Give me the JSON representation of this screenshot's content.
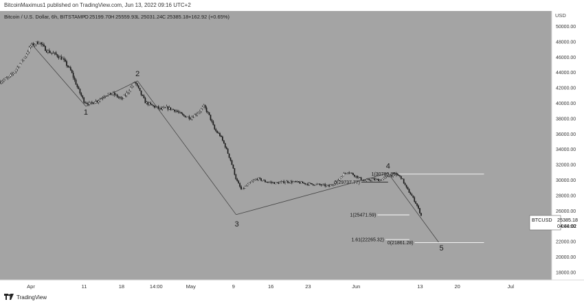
{
  "header": {
    "published": "BitcoinMaximus1 published on TradingView.com, Jun 13, 2022 09:16 UTC+2"
  },
  "symbol_bar": {
    "name": "Bitcoin / U.S. Dollar, 6h, BITSTAMP",
    "o_label": "O",
    "o": "25199.70",
    "h_label": "H",
    "h": "25559.93",
    "l_label": "L",
    "l": "25031.24",
    "c_label": "C",
    "c": "25385.18",
    "change": "+162.92 (+0.65%)"
  },
  "price_tag": {
    "symbol": "BTCUSD",
    "price": "25385.18",
    "countdown": "04:44:02"
  },
  "footer": {
    "brand": "TradingView"
  },
  "colors": {
    "background": "#a4a4a4",
    "candle": "#1a1a1a",
    "wave_line": "#444444",
    "fib_line": "#ffffff",
    "price_tag": "#ffffff"
  },
  "chart_data": {
    "type": "candlestick",
    "currency": "USD",
    "ylim": [
      17000,
      52000
    ],
    "y_ticks": [
      50000,
      48000,
      46000,
      44000,
      42000,
      40000,
      38000,
      36000,
      34000,
      32000,
      30000,
      28000,
      26000,
      24000,
      22000,
      20000,
      18000
    ],
    "y_tick_labels": [
      "50000.00",
      "48000.00",
      "46000.00",
      "44000.00",
      "42000.00",
      "40000.00",
      "38000.00",
      "36000.00",
      "34000.00",
      "32000.00",
      "30000.00",
      "28000.00",
      "26000.00",
      "24000.00",
      "22000.00",
      "20000.00",
      "18000.00"
    ],
    "x_range_days": [
      -5.8,
      97.7
    ],
    "x_ticks": [
      {
        "day": 0,
        "label": "Apr"
      },
      {
        "day": 10,
        "label": "11"
      },
      {
        "day": 17,
        "label": "18"
      },
      {
        "day": 23.5,
        "label": "14:00"
      },
      {
        "day": 30,
        "label": "May"
      },
      {
        "day": 38,
        "label": "9"
      },
      {
        "day": 45,
        "label": "16"
      },
      {
        "day": 52,
        "label": "23"
      },
      {
        "day": 61,
        "label": "Jun"
      },
      {
        "day": 73,
        "label": "13"
      },
      {
        "day": 80,
        "label": "20"
      },
      {
        "day": 90,
        "label": "Jul"
      }
    ],
    "price_path": [
      [
        -5.8,
        42800
      ],
      [
        -4,
        43400
      ],
      [
        -2.5,
        44700
      ],
      [
        -1,
        46200
      ],
      [
        0,
        47500
      ],
      [
        1.5,
        48000
      ],
      [
        3,
        46800
      ],
      [
        4.5,
        46400
      ],
      [
        6,
        45700
      ],
      [
        7.5,
        44200
      ],
      [
        9,
        41600
      ],
      [
        10,
        40200
      ],
      [
        11,
        39900
      ],
      [
        12.5,
        40300
      ],
      [
        14,
        41100
      ],
      [
        15.5,
        41200
      ],
      [
        17,
        40500
      ],
      [
        18,
        41300
      ],
      [
        19.5,
        42800
      ],
      [
        20.5,
        41400
      ],
      [
        21.5,
        40100
      ],
      [
        23,
        39600
      ],
      [
        24.5,
        39200
      ],
      [
        25.5,
        39400
      ],
      [
        27,
        39100
      ],
      [
        28.5,
        38400
      ],
      [
        30,
        38100
      ],
      [
        31.5,
        38900
      ],
      [
        32.5,
        39600
      ],
      [
        33.5,
        38300
      ],
      [
        34.5,
        36500
      ],
      [
        35.5,
        35800
      ],
      [
        36.5,
        34300
      ],
      [
        37.5,
        32500
      ],
      [
        38.5,
        30100
      ],
      [
        39.5,
        28700
      ],
      [
        40.5,
        29300
      ],
      [
        41.5,
        29800
      ],
      [
        42.5,
        30200
      ],
      [
        44,
        29800
      ],
      [
        46,
        29600
      ],
      [
        48,
        29800
      ],
      [
        50,
        29700
      ],
      [
        52,
        29500
      ],
      [
        54,
        29400
      ],
      [
        56,
        29200
      ],
      [
        57.5,
        29900
      ],
      [
        58.5,
        30700
      ],
      [
        59.5,
        31100
      ],
      [
        61,
        30500
      ],
      [
        62.5,
        29900
      ],
      [
        64,
        30100
      ],
      [
        65.5,
        30000
      ],
      [
        67,
        30500
      ],
      [
        68.5,
        30800
      ],
      [
        69.5,
        30300
      ],
      [
        70.5,
        28900
      ],
      [
        71.5,
        27900
      ],
      [
        72.5,
        26600
      ],
      [
        73.2,
        25385
      ]
    ],
    "wave_points": [
      {
        "label": "1",
        "day": 10.3,
        "price": 39600
      },
      {
        "label": "2",
        "day": 20,
        "price": 42900
      },
      {
        "label": "3",
        "day": 38.5,
        "price": 25500
      },
      {
        "label": "4",
        "day": 67,
        "price": 30900
      },
      {
        "label": "5",
        "day": 76.5,
        "price": 21900
      }
    ],
    "wave_start": {
      "day": 0,
      "price": 47800
    },
    "fib_levels": [
      {
        "label": "0(29737.77)",
        "price": 29738,
        "start_day": 62,
        "end_day": 67
      },
      {
        "label": "1(30780.86)",
        "price": 30781,
        "start_day": 69,
        "end_day": 85
      },
      {
        "label": "1(25471.59)",
        "price": 25472,
        "start_day": 65,
        "end_day": 71
      },
      {
        "label": "1.61(22265.32)",
        "price": 22265,
        "start_day": 66.5,
        "end_day": 71
      },
      {
        "label": "0(21861.28)",
        "price": 21861,
        "start_day": 72,
        "end_day": 85
      }
    ]
  }
}
